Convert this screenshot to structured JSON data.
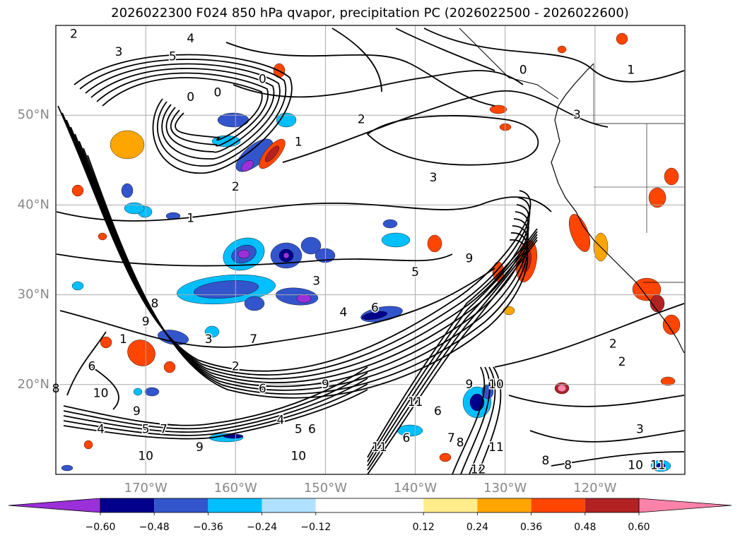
{
  "title": "2026022300 F024 850 hPa qvapor, precipitation PC (2026022500 - 2026022600)",
  "map": {
    "lon_range": [
      -180,
      -110
    ],
    "lat_range": [
      10,
      60
    ],
    "lat_labels": [
      {
        "lat": 50,
        "text": "50°N"
      },
      {
        "lat": 40,
        "text": "40°N"
      },
      {
        "lat": 30,
        "text": "30°N"
      },
      {
        "lat": 20,
        "text": "20°N"
      }
    ],
    "lon_labels": [
      {
        "lon": -170,
        "text": "170°W"
      },
      {
        "lon": -160,
        "text": "160°W"
      },
      {
        "lon": -150,
        "text": "150°W"
      },
      {
        "lon": -140,
        "text": "140°W"
      },
      {
        "lon": -130,
        "text": "130°W"
      },
      {
        "lon": -120,
        "text": "120°W"
      }
    ],
    "grid": true,
    "contour_labels": [
      {
        "lon": -178,
        "lat": 59,
        "text": "2"
      },
      {
        "lon": -173,
        "lat": 57,
        "text": "3"
      },
      {
        "lon": -167,
        "lat": 56.5,
        "text": "5"
      },
      {
        "lon": -165,
        "lat": 58.5,
        "text": "4"
      },
      {
        "lon": -157,
        "lat": 54,
        "text": "0"
      },
      {
        "lon": -165,
        "lat": 52,
        "text": "0"
      },
      {
        "lon": -162,
        "lat": 52.5,
        "text": "0"
      },
      {
        "lon": -153,
        "lat": 47,
        "text": "1"
      },
      {
        "lon": -146,
        "lat": 49.5,
        "text": "2"
      },
      {
        "lon": -128,
        "lat": 55,
        "text": "0"
      },
      {
        "lon": -116,
        "lat": 55,
        "text": "1"
      },
      {
        "lon": -122,
        "lat": 50,
        "text": "3"
      },
      {
        "lon": -138,
        "lat": 43,
        "text": "3"
      },
      {
        "lon": -160,
        "lat": 42,
        "text": "2"
      },
      {
        "lon": -165,
        "lat": 38.5,
        "text": "1"
      },
      {
        "lon": -151,
        "lat": 31.5,
        "text": "3"
      },
      {
        "lon": -140,
        "lat": 32.5,
        "text": "5"
      },
      {
        "lon": -134,
        "lat": 34,
        "text": "9"
      },
      {
        "lon": -148,
        "lat": 28,
        "text": "4"
      },
      {
        "lon": -144.5,
        "lat": 28.5,
        "text": "6"
      },
      {
        "lon": -158,
        "lat": 25,
        "text": "7"
      },
      {
        "lon": -163,
        "lat": 25,
        "text": "3"
      },
      {
        "lon": -169,
        "lat": 29,
        "text": "8"
      },
      {
        "lon": -170,
        "lat": 27,
        "text": "9"
      },
      {
        "lon": -172.5,
        "lat": 25,
        "text": "1"
      },
      {
        "lon": -176,
        "lat": 22,
        "text": "6"
      },
      {
        "lon": -180,
        "lat": 19.5,
        "text": "8"
      },
      {
        "lon": -175,
        "lat": 19,
        "text": "10"
      },
      {
        "lon": -171,
        "lat": 17,
        "text": "9"
      },
      {
        "lon": -175,
        "lat": 15,
        "text": "4"
      },
      {
        "lon": -170,
        "lat": 15,
        "text": "5"
      },
      {
        "lon": -168,
        "lat": 15,
        "text": "7"
      },
      {
        "lon": -164,
        "lat": 13,
        "text": "9"
      },
      {
        "lon": -160,
        "lat": 22,
        "text": "2"
      },
      {
        "lon": -157,
        "lat": 19.5,
        "text": "6"
      },
      {
        "lon": -150,
        "lat": 20,
        "text": "9"
      },
      {
        "lon": -155,
        "lat": 16,
        "text": "4"
      },
      {
        "lon": -153,
        "lat": 15,
        "text": "5"
      },
      {
        "lon": -151.5,
        "lat": 15,
        "text": "6"
      },
      {
        "lon": -153,
        "lat": 12,
        "text": "10"
      },
      {
        "lon": -170,
        "lat": 12,
        "text": "10"
      },
      {
        "lon": -140,
        "lat": 18,
        "text": "11"
      },
      {
        "lon": -137.5,
        "lat": 17,
        "text": "6"
      },
      {
        "lon": -134,
        "lat": 20,
        "text": "9"
      },
      {
        "lon": -131,
        "lat": 20,
        "text": "10"
      },
      {
        "lon": -136,
        "lat": 14,
        "text": "7"
      },
      {
        "lon": -144,
        "lat": 13,
        "text": "11"
      },
      {
        "lon": -141,
        "lat": 14,
        "text": "6"
      },
      {
        "lon": -135,
        "lat": 13.5,
        "text": "8"
      },
      {
        "lon": -131,
        "lat": 13,
        "text": "11"
      },
      {
        "lon": -133,
        "lat": 10.5,
        "text": "12"
      },
      {
        "lon": -125.5,
        "lat": 11.5,
        "text": "8"
      },
      {
        "lon": -123,
        "lat": 11,
        "text": "8"
      },
      {
        "lon": -115.5,
        "lat": 11,
        "text": "10"
      },
      {
        "lon": -113,
        "lat": 11,
        "text": "11"
      },
      {
        "lon": -118,
        "lat": 24.5,
        "text": "2"
      },
      {
        "lon": -117,
        "lat": 22.5,
        "text": "2"
      },
      {
        "lon": -115,
        "lat": 15,
        "text": "3"
      }
    ]
  },
  "chart_data": {
    "type": "heatmap",
    "title": "2026022300 F024 850 hPa qvapor, precipitation PC (2026022500 - 2026022600)",
    "colorbar": {
      "levels": [
        -0.72,
        -0.6,
        -0.48,
        -0.36,
        -0.24,
        -0.12,
        0.12,
        0.24,
        0.36,
        0.48,
        0.6,
        0.72
      ],
      "colors": [
        "#9b30d9",
        "#00008b",
        "#3355cc",
        "#00bfff",
        "#b0e2ff",
        "#ffffff",
        "#ffec8b",
        "#ffa500",
        "#ff4500",
        "#b22222",
        "#ff82ab"
      ],
      "tick_labels": [
        "−0.60",
        "−0.48",
        "−0.36",
        "−0.24",
        "−0.12",
        "0.12",
        "0.24",
        "0.36",
        "0.48",
        "0.60"
      ],
      "extend": "both"
    }
  },
  "colors": {
    "grid": "#aaaaaa",
    "contour": "#000000",
    "coast": "#000000",
    "frame": "#000000",
    "label": "#888888"
  }
}
